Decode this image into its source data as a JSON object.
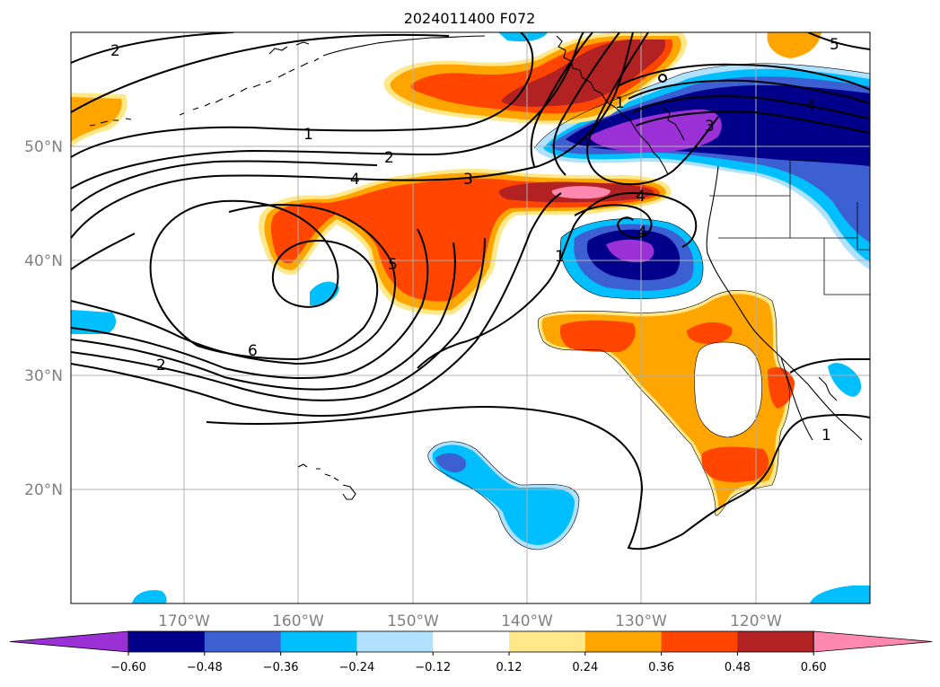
{
  "title": "2024011400 F072",
  "map": {
    "lat_labels": [
      "50°N",
      "40°N",
      "30°N",
      "20°N"
    ],
    "lon_labels": [
      "170°W",
      "160°W",
      "150°W",
      "140°W",
      "130°W",
      "120°W"
    ],
    "lon_range": [
      -180,
      -110
    ],
    "lat_range": [
      10,
      60
    ]
  },
  "contour_labels": [
    "2",
    "1",
    "2",
    "4",
    "3",
    "4",
    "5",
    "6",
    "2",
    "1",
    "5",
    "3",
    "4",
    "4",
    "1",
    "1"
  ],
  "colorbar": {
    "ticks": [
      "−0.60",
      "−0.48",
      "−0.36",
      "−0.24",
      "−0.12",
      "0.12",
      "0.24",
      "0.36",
      "0.48",
      "0.60"
    ],
    "colors": [
      "#9b30d6",
      "#00008b",
      "#3c5fd2",
      "#00bfff",
      "#b0e2ff",
      "#ffffff",
      "#ffe88a",
      "#ffa500",
      "#ff4500",
      "#b22222",
      "#ff88b0",
      "#ff88b0"
    ]
  },
  "colors": {
    "purple": "#9b30d6",
    "navy": "#00008b",
    "royal": "#3c5fd2",
    "sky": "#00bfff",
    "lightblue": "#b0e2ff",
    "yellow": "#ffe88a",
    "orange": "#ffa500",
    "redorange": "#ff4500",
    "firebrick": "#b22222",
    "pink": "#ff88b0"
  }
}
